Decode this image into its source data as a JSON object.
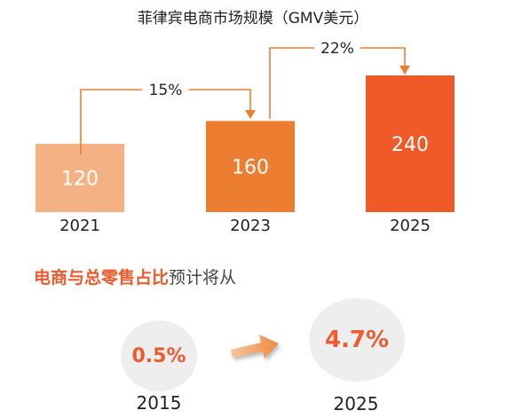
{
  "chart_data": {
    "type": "bar",
    "title": "菲律宾电商市场规模（GMV美元）",
    "categories": [
      "2021",
      "2023",
      "2025"
    ],
    "values": [
      120,
      160,
      240
    ],
    "colors": [
      "#f4b183",
      "#ed7d31",
      "#f05a28"
    ],
    "value_label_color": "#ffffff",
    "growth_annotations": [
      {
        "from": "2021",
        "to": "2023",
        "label": "15%"
      },
      {
        "from": "2023",
        "to": "2025",
        "label": "22%"
      }
    ],
    "connector_color": "#ed7d31"
  },
  "share": {
    "heading_strong": "电商与总零售占比",
    "heading_rest": "预计将从",
    "accent": "#ee5a2c",
    "points": [
      {
        "year": "2015",
        "value": "0.5%"
      },
      {
        "year": "2025",
        "value": "4.7%"
      }
    ]
  }
}
